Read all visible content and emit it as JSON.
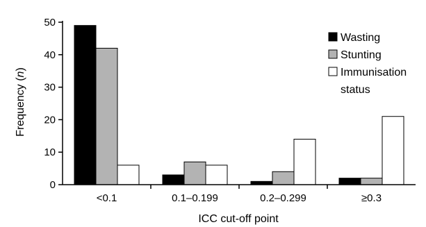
{
  "chart_data": {
    "type": "bar",
    "categories": [
      "<0.1",
      "0.1–0.199",
      "0.2–0.299",
      "≥0.3"
    ],
    "series": [
      {
        "name": "Wasting",
        "values": [
          49,
          3,
          1,
          2
        ],
        "color": "#000000"
      },
      {
        "name": "Stunting",
        "values": [
          42,
          7,
          4,
          2
        ],
        "color": "#b3b3b3"
      },
      {
        "name": "Immunisation status",
        "values": [
          6,
          6,
          14,
          21
        ],
        "color": "#ffffff"
      }
    ],
    "legend_lines": [
      [
        "Wasting"
      ],
      [
        "Stunting"
      ],
      [
        "Immunisation",
        "status"
      ]
    ],
    "xlabel": "ICC cut-off point",
    "ylabel_text": "Frequency (",
    "ylabel_italic": "n",
    "ylabel_close": ")",
    "ylim": [
      0,
      50
    ],
    "yticks": [
      0,
      10,
      20,
      30,
      40,
      50
    ],
    "legend_position": "top-right",
    "grid": false
  }
}
